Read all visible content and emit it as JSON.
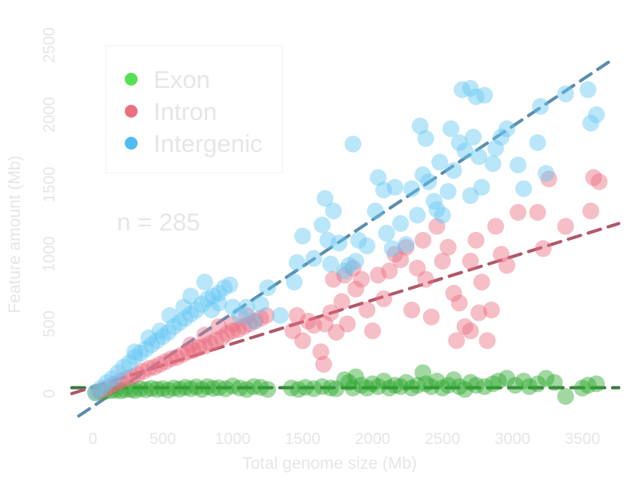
{
  "chart_data": {
    "type": "scatter",
    "xlabel": "Total genome size (Mb)",
    "ylabel": "Feature amount (Mb)",
    "xlim": [
      -150,
      3760
    ],
    "ylim": [
      -200,
      2550
    ],
    "xticks": [
      "0",
      "500",
      "1000",
      "1500",
      "2000",
      "2500",
      "3000",
      "3500"
    ],
    "yticks": [
      "0",
      "500",
      "1000",
      "1500",
      "2000",
      "2500"
    ],
    "annotation": "n = 285",
    "legend_position": "top-left",
    "series": [
      {
        "name": "Exon",
        "color": "#2fa82f",
        "legend_color": "#55e055",
        "trend_color": "#3c7a46",
        "trend": [
          [
            -150,
            42
          ],
          [
            3760,
            42
          ]
        ],
        "points": [
          [
            20,
            5
          ],
          [
            60,
            12
          ],
          [
            90,
            18
          ],
          [
            130,
            22
          ],
          [
            160,
            25
          ],
          [
            200,
            20
          ],
          [
            230,
            28
          ],
          [
            270,
            30
          ],
          [
            300,
            22
          ],
          [
            340,
            35
          ],
          [
            380,
            28
          ],
          [
            420,
            38
          ],
          [
            460,
            30
          ],
          [
            500,
            36
          ],
          [
            540,
            25
          ],
          [
            580,
            40
          ],
          [
            620,
            32
          ],
          [
            660,
            45
          ],
          [
            700,
            35
          ],
          [
            740,
            48
          ],
          [
            780,
            30
          ],
          [
            820,
            50
          ],
          [
            860,
            38
          ],
          [
            900,
            42
          ],
          [
            950,
            35
          ],
          [
            1000,
            55
          ],
          [
            1050,
            40
          ],
          [
            1100,
            30
          ],
          [
            1150,
            50
          ],
          [
            1200,
            45
          ],
          [
            1250,
            30
          ],
          [
            1420,
            40
          ],
          [
            1470,
            30
          ],
          [
            1520,
            45
          ],
          [
            1580,
            35
          ],
          [
            1640,
            50
          ],
          [
            1700,
            40
          ],
          [
            1740,
            35
          ],
          [
            1800,
            100
          ],
          [
            1830,
            80
          ],
          [
            1860,
            40
          ],
          [
            1880,
            120
          ],
          [
            1920,
            60
          ],
          [
            1960,
            40
          ],
          [
            2000,
            70
          ],
          [
            2040,
            50
          ],
          [
            2080,
            90
          ],
          [
            2120,
            40
          ],
          [
            2160,
            60
          ],
          [
            2200,
            50
          ],
          [
            2240,
            80
          ],
          [
            2280,
            40
          ],
          [
            2320,
            60
          ],
          [
            2360,
            150
          ],
          [
            2380,
            70
          ],
          [
            2420,
            50
          ],
          [
            2460,
            90
          ],
          [
            2500,
            40
          ],
          [
            2540,
            60
          ],
          [
            2580,
            100
          ],
          [
            2620,
            50
          ],
          [
            2660,
            30
          ],
          [
            2700,
            80
          ],
          [
            2740,
            60
          ],
          [
            2800,
            50
          ],
          [
            2860,
            70
          ],
          [
            2900,
            90
          ],
          [
            2960,
            110
          ],
          [
            3020,
            60
          ],
          [
            3080,
            90
          ],
          [
            3120,
            50
          ],
          [
            3180,
            70
          ],
          [
            3240,
            110
          ],
          [
            3300,
            80
          ],
          [
            3380,
            -20
          ],
          [
            3500,
            40
          ],
          [
            3540,
            60
          ],
          [
            3600,
            70
          ]
        ]
      },
      {
        "name": "Intron",
        "color": "#ea6f80",
        "legend_color": "#ea6f80",
        "trend_color": "#b0586a",
        "trend": [
          [
            -150,
            0
          ],
          [
            3760,
            1220
          ]
        ],
        "points": [
          [
            40,
            15
          ],
          [
            80,
            30
          ],
          [
            120,
            50
          ],
          [
            160,
            70
          ],
          [
            200,
            90
          ],
          [
            240,
            110
          ],
          [
            280,
            120
          ],
          [
            320,
            140
          ],
          [
            360,
            160
          ],
          [
            400,
            180
          ],
          [
            440,
            190
          ],
          [
            480,
            210
          ],
          [
            520,
            230
          ],
          [
            560,
            250
          ],
          [
            600,
            260
          ],
          [
            640,
            280
          ],
          [
            680,
            300
          ],
          [
            720,
            310
          ],
          [
            760,
            330
          ],
          [
            800,
            340
          ],
          [
            840,
            360
          ],
          [
            880,
            380
          ],
          [
            920,
            400
          ],
          [
            960,
            430
          ],
          [
            1000,
            450
          ],
          [
            1040,
            460
          ],
          [
            1080,
            480
          ],
          [
            1120,
            500
          ],
          [
            1160,
            520
          ],
          [
            1200,
            540
          ],
          [
            1240,
            560
          ],
          [
            700,
            350
          ],
          [
            800,
            420
          ],
          [
            900,
            480
          ],
          [
            1000,
            500
          ],
          [
            1100,
            560
          ],
          [
            1430,
            450
          ],
          [
            1460,
            560
          ],
          [
            1500,
            380
          ],
          [
            1540,
            520
          ],
          [
            1580,
            490
          ],
          [
            1630,
            300
          ],
          [
            1650,
            210
          ],
          [
            1660,
            500
          ],
          [
            1700,
            580
          ],
          [
            1720,
            820
          ],
          [
            1740,
            440
          ],
          [
            1780,
            660
          ],
          [
            1800,
            850
          ],
          [
            1820,
            500
          ],
          [
            1860,
            900
          ],
          [
            1880,
            750
          ],
          [
            1920,
            820
          ],
          [
            1960,
            600
          ],
          [
            2000,
            450
          ],
          [
            2040,
            850
          ],
          [
            2080,
            680
          ],
          [
            2120,
            880
          ],
          [
            2160,
            1000
          ],
          [
            2200,
            960
          ],
          [
            2240,
            1050
          ],
          [
            2280,
            600
          ],
          [
            2320,
            900
          ],
          [
            2360,
            1100
          ],
          [
            2380,
            820
          ],
          [
            2420,
            550
          ],
          [
            2460,
            1200
          ],
          [
            2500,
            950
          ],
          [
            2540,
            1050
          ],
          [
            2580,
            720
          ],
          [
            2620,
            650
          ],
          [
            2660,
            480
          ],
          [
            2700,
            950
          ],
          [
            2740,
            1100
          ],
          [
            2780,
            800
          ],
          [
            2820,
            380
          ],
          [
            2880,
            1200
          ],
          [
            2920,
            1000
          ],
          [
            2960,
            920
          ],
          [
            3040,
            1300
          ],
          [
            3180,
            1300
          ],
          [
            3220,
            1040
          ],
          [
            3260,
            1540
          ],
          [
            3380,
            1200
          ],
          [
            3560,
            1310
          ],
          [
            3580,
            1550
          ],
          [
            3620,
            1520
          ],
          [
            2600,
            380
          ],
          [
            2700,
            450
          ],
          [
            2760,
            580
          ],
          [
            2850,
            600
          ]
        ]
      },
      {
        "name": "Intergenic",
        "color": "#66c8f5",
        "legend_color": "#4fbdf2",
        "trend_color": "#5a8dae",
        "trend": [
          [
            -100,
            -160
          ],
          [
            3720,
            2400
          ]
        ],
        "points": [
          [
            20,
            10
          ],
          [
            60,
            40
          ],
          [
            100,
            80
          ],
          [
            140,
            110
          ],
          [
            180,
            150
          ],
          [
            220,
            190
          ],
          [
            260,
            220
          ],
          [
            300,
            260
          ],
          [
            340,
            290
          ],
          [
            380,
            320
          ],
          [
            420,
            350
          ],
          [
            460,
            380
          ],
          [
            500,
            410
          ],
          [
            540,
            440
          ],
          [
            580,
            480
          ],
          [
            620,
            510
          ],
          [
            660,
            540
          ],
          [
            700,
            570
          ],
          [
            740,
            600
          ],
          [
            780,
            640
          ],
          [
            820,
            680
          ],
          [
            860,
            700
          ],
          [
            900,
            720
          ],
          [
            940,
            760
          ],
          [
            980,
            780
          ],
          [
            300,
            300
          ],
          [
            400,
            400
          ],
          [
            480,
            450
          ],
          [
            550,
            560
          ],
          [
            650,
            620
          ],
          [
            700,
            700
          ],
          [
            800,
            800
          ],
          [
            850,
            600
          ],
          [
            900,
            650
          ],
          [
            1000,
            620
          ],
          [
            1050,
            560
          ],
          [
            1100,
            620
          ],
          [
            1150,
            520
          ],
          [
            1200,
            640
          ],
          [
            1250,
            760
          ],
          [
            1340,
            560
          ],
          [
            1440,
            800
          ],
          [
            1460,
            940
          ],
          [
            1500,
            1130
          ],
          [
            1580,
            970
          ],
          [
            1640,
            1210
          ],
          [
            1660,
            1400
          ],
          [
            1680,
            1100
          ],
          [
            1700,
            930
          ],
          [
            1720,
            1310
          ],
          [
            1760,
            1080
          ],
          [
            1800,
            880
          ],
          [
            1830,
            920
          ],
          [
            1860,
            1790
          ],
          [
            1880,
            950
          ],
          [
            1900,
            1100
          ],
          [
            1960,
            1060
          ],
          [
            2020,
            1310
          ],
          [
            2040,
            1550
          ],
          [
            2080,
            1460
          ],
          [
            2100,
            1150
          ],
          [
            2140,
            1040
          ],
          [
            2160,
            1480
          ],
          [
            2200,
            1220
          ],
          [
            2240,
            1070
          ],
          [
            2280,
            1470
          ],
          [
            2320,
            1280
          ],
          [
            2340,
            1920
          ],
          [
            2360,
            1570
          ],
          [
            2380,
            1830
          ],
          [
            2400,
            1520
          ],
          [
            2440,
            1380
          ],
          [
            2460,
            1320
          ],
          [
            2480,
            1660
          ],
          [
            2500,
            1280
          ],
          [
            2540,
            1450
          ],
          [
            2560,
            1900
          ],
          [
            2580,
            1600
          ],
          [
            2620,
            1800
          ],
          [
            2640,
            2180
          ],
          [
            2660,
            1740
          ],
          [
            2700,
            1420
          ],
          [
            2720,
            1840
          ],
          [
            2760,
            1700
          ],
          [
            2780,
            1480
          ],
          [
            2800,
            2140
          ],
          [
            2860,
            1650
          ],
          [
            2880,
            1760
          ],
          [
            2920,
            1840
          ],
          [
            2960,
            1900
          ],
          [
            3040,
            1640
          ],
          [
            3080,
            1470
          ],
          [
            3180,
            1800
          ],
          [
            3200,
            2060
          ],
          [
            3240,
            1580
          ],
          [
            3380,
            2150
          ],
          [
            3540,
            2180
          ],
          [
            3560,
            1940
          ],
          [
            3600,
            2000
          ],
          [
            2700,
            2190
          ],
          [
            2740,
            2130
          ]
        ]
      }
    ]
  }
}
